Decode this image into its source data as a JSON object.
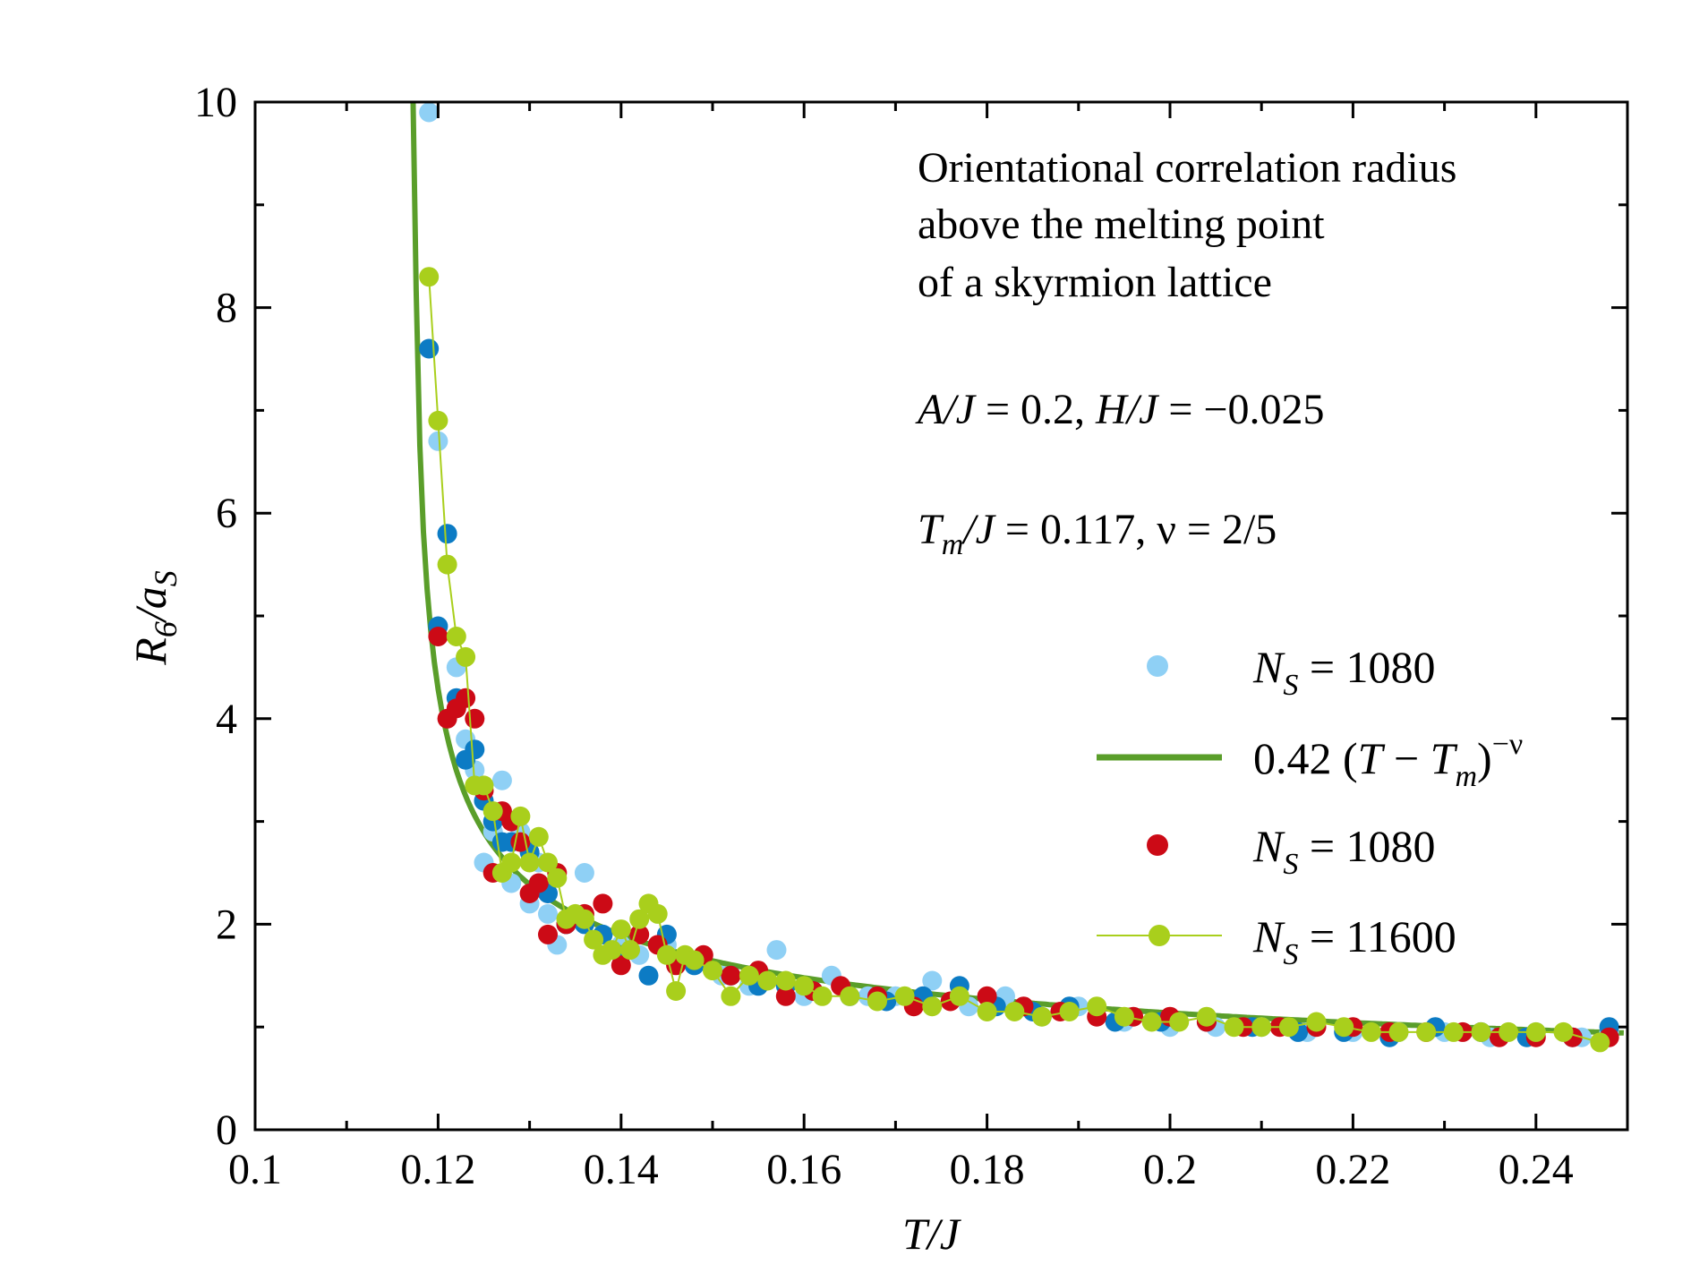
{
  "chart_data": {
    "type": "scatter",
    "xlabel": "T/J",
    "ylabel": "R6/aS",
    "xlim": [
      0.1,
      0.25
    ],
    "ylim": [
      0,
      10
    ],
    "x_ticks": [
      "0.1",
      "0.12",
      "0.14",
      "0.16",
      "0.18",
      "0.2",
      "0.22",
      "0.24"
    ],
    "y_ticks": [
      "0",
      "2",
      "4",
      "6",
      "8",
      "10"
    ],
    "grid": false,
    "legend_position": "right",
    "annotation": {
      "line1": "Orientational correlation radius",
      "line2": "above the melting point",
      "line3": "of a skyrmion lattice",
      "params1": "A/J  = 0.2, H/J  = −0.025",
      "params2": "Tm/J  = 0.117, ν = 2/5"
    },
    "legend": [
      {
        "label": "NS = 1080",
        "color": "#8fd0f5",
        "marker": "circle"
      },
      {
        "label": "0.42 (T − Tm)−ν",
        "color": "#5a9e2a",
        "marker": "line"
      },
      {
        "label": "NS = 1080",
        "color": "#cc0a16",
        "marker": "circle"
      },
      {
        "label": "NS = 11600",
        "color": "#a9cf1c",
        "marker": "circle-line"
      }
    ],
    "fit": {
      "amplitude": 0.42,
      "Tm": 0.117,
      "nu": 0.4,
      "color": "#5a9e2a"
    },
    "series": [
      {
        "name": "NS = 1080",
        "color": "#8fd0f5",
        "x": [
          0.119,
          0.12,
          0.121,
          0.122,
          0.123,
          0.124,
          0.125,
          0.126,
          0.127,
          0.128,
          0.129,
          0.13,
          0.131,
          0.132,
          0.133,
          0.134,
          0.136,
          0.138,
          0.14,
          0.142,
          0.145,
          0.148,
          0.151,
          0.154,
          0.157,
          0.16,
          0.163,
          0.167,
          0.17,
          0.174,
          0.178,
          0.182,
          0.186,
          0.19,
          0.195,
          0.2,
          0.205,
          0.21,
          0.215,
          0.22,
          0.225,
          0.23,
          0.235,
          0.24,
          0.245,
          0.248
        ],
        "y": [
          9.9,
          6.7,
          5.8,
          4.5,
          3.8,
          3.5,
          2.6,
          2.9,
          3.4,
          2.4,
          2.9,
          2.2,
          2.6,
          2.1,
          1.8,
          2.0,
          2.5,
          1.9,
          1.8,
          1.7,
          1.8,
          1.6,
          1.5,
          1.4,
          1.75,
          1.3,
          1.5,
          1.3,
          1.3,
          1.45,
          1.2,
          1.3,
          1.1,
          1.2,
          1.05,
          1.0,
          1.0,
          1.0,
          0.95,
          0.95,
          0.95,
          0.95,
          0.9,
          0.95,
          0.9,
          0.95
        ]
      },
      {
        "name": "NS = 1080 (blue)",
        "color": "#0c7bc4",
        "x": [
          0.119,
          0.12,
          0.121,
          0.122,
          0.123,
          0.124,
          0.125,
          0.126,
          0.127,
          0.128,
          0.13,
          0.131,
          0.132,
          0.134,
          0.136,
          0.138,
          0.14,
          0.143,
          0.145,
          0.148,
          0.152,
          0.155,
          0.158,
          0.161,
          0.165,
          0.169,
          0.173,
          0.177,
          0.181,
          0.185,
          0.189,
          0.194,
          0.199,
          0.204,
          0.209,
          0.214,
          0.219,
          0.224,
          0.229,
          0.234,
          0.239,
          0.244,
          0.248
        ],
        "y": [
          7.6,
          4.9,
          5.8,
          4.2,
          3.6,
          3.7,
          3.2,
          3.0,
          2.8,
          2.8,
          2.7,
          2.4,
          2.3,
          2.0,
          2.0,
          1.9,
          1.7,
          1.5,
          1.9,
          1.6,
          1.5,
          1.4,
          1.4,
          1.35,
          1.3,
          1.25,
          1.3,
          1.4,
          1.2,
          1.15,
          1.2,
          1.05,
          1.05,
          1.05,
          1.0,
          0.95,
          0.95,
          0.9,
          1.0,
          0.95,
          0.9,
          0.9,
          1.0
        ]
      },
      {
        "name": "NS = 1080 (red)",
        "color": "#cc0a16",
        "x": [
          0.12,
          0.121,
          0.122,
          0.123,
          0.124,
          0.125,
          0.126,
          0.127,
          0.128,
          0.129,
          0.13,
          0.131,
          0.132,
          0.133,
          0.134,
          0.136,
          0.138,
          0.14,
          0.142,
          0.144,
          0.146,
          0.149,
          0.152,
          0.155,
          0.158,
          0.161,
          0.164,
          0.168,
          0.172,
          0.176,
          0.18,
          0.184,
          0.188,
          0.192,
          0.196,
          0.2,
          0.204,
          0.208,
          0.212,
          0.216,
          0.22,
          0.224,
          0.228,
          0.232,
          0.236,
          0.24,
          0.244,
          0.248
        ],
        "y": [
          4.8,
          4.0,
          4.1,
          4.2,
          4.0,
          3.3,
          2.5,
          3.1,
          3.0,
          2.8,
          2.3,
          2.4,
          1.9,
          2.5,
          2.0,
          2.1,
          2.2,
          1.6,
          1.9,
          1.8,
          1.6,
          1.7,
          1.5,
          1.55,
          1.3,
          1.35,
          1.4,
          1.3,
          1.2,
          1.25,
          1.3,
          1.2,
          1.15,
          1.1,
          1.1,
          1.1,
          1.05,
          1.0,
          1.0,
          1.0,
          1.0,
          0.95,
          0.95,
          0.95,
          0.9,
          0.9,
          0.9,
          0.9
        ]
      },
      {
        "name": "NS = 11600",
        "color": "#a9cf1c",
        "x": [
          0.119,
          0.12,
          0.121,
          0.122,
          0.123,
          0.124,
          0.125,
          0.126,
          0.127,
          0.128,
          0.129,
          0.13,
          0.131,
          0.132,
          0.133,
          0.134,
          0.135,
          0.136,
          0.137,
          0.138,
          0.139,
          0.14,
          0.141,
          0.142,
          0.143,
          0.144,
          0.145,
          0.146,
          0.147,
          0.148,
          0.15,
          0.152,
          0.154,
          0.156,
          0.158,
          0.16,
          0.162,
          0.165,
          0.168,
          0.171,
          0.174,
          0.177,
          0.18,
          0.183,
          0.186,
          0.189,
          0.192,
          0.195,
          0.198,
          0.201,
          0.204,
          0.207,
          0.21,
          0.213,
          0.216,
          0.219,
          0.222,
          0.225,
          0.228,
          0.231,
          0.234,
          0.237,
          0.24,
          0.243,
          0.247
        ],
        "y": [
          8.3,
          6.9,
          5.5,
          4.8,
          4.6,
          3.35,
          3.35,
          3.1,
          2.5,
          2.6,
          3.05,
          2.6,
          2.85,
          2.6,
          2.45,
          2.05,
          2.1,
          2.05,
          1.85,
          1.7,
          1.75,
          1.95,
          1.75,
          2.05,
          2.2,
          2.1,
          1.7,
          1.35,
          1.7,
          1.65,
          1.55,
          1.3,
          1.5,
          1.45,
          1.45,
          1.4,
          1.3,
          1.3,
          1.25,
          1.3,
          1.2,
          1.3,
          1.15,
          1.15,
          1.1,
          1.15,
          1.2,
          1.1,
          1.05,
          1.05,
          1.1,
          1.0,
          1.0,
          1.0,
          1.05,
          1.0,
          0.95,
          0.95,
          0.95,
          0.95,
          0.95,
          0.95,
          0.95,
          0.95,
          0.85
        ]
      }
    ]
  }
}
